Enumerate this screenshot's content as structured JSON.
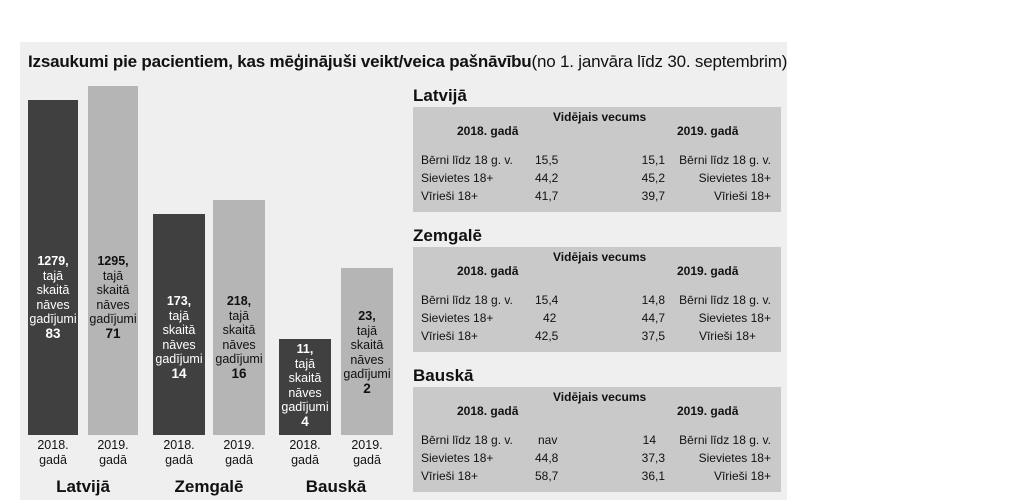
{
  "chart_data": {
    "type": "bar",
    "title": "Izsaukumi pie pacientiem, kas mēģinājuši veikt/veica pašnāvību",
    "subtitle": "(no 1. janvāra līdz 30. septembrim)",
    "categories": [
      "Latvijā",
      "Zemgalē",
      "Bauskā"
    ],
    "series": [
      {
        "name": "2018. gadā",
        "values": [
          1279,
          173,
          11
        ],
        "deaths": [
          83,
          14,
          4
        ]
      },
      {
        "name": "2019. gadā",
        "values": [
          1295,
          218,
          23
        ],
        "deaths": [
          71,
          16,
          2
        ]
      }
    ],
    "year_labels": [
      "2018.\ngadā",
      "2019.\ngadā"
    ],
    "bar_text": {
      "latvija_2018": "1279,\ntajā\nskaitā\nnāves\ngadījumi\n83",
      "latvija_2019": "1295,\ntajā\nskaitā\nnāves\ngadījumi\n71",
      "zemgale_2018": "173,\ntajā\nskaitā\nnāves\ngadījumi\n14",
      "zemgale_2019": "218,\ntajā\nskaitā\nnāves\ngadījumi\n16",
      "bauska_2018": "11,\ntajā\nskaitā\nnāves\ngadījumi\n4",
      "bauska_2019": "23,\ntajā\nskaitā\nnāves\ngadījumi\n2"
    },
    "legend": "none",
    "grid": false
  },
  "tables": [
    {
      "region": "Latvijā",
      "header": "Vidējais vecums",
      "col_2018": "2018. gadā",
      "col_2019": "2019. gadā",
      "rows": [
        {
          "label": "Bērni līdz 18 g. v.",
          "v2018": "15,5",
          "v2019": "15,1",
          "label_right": "Bērni līdz 18 g. v."
        },
        {
          "label": "Sievietes 18+",
          "v2018": "44,2",
          "v2019": "45,2",
          "label_right": "Sievietes 18+"
        },
        {
          "label": "Vīrieši 18+",
          "v2018": "41,7",
          "v2019": "39,7",
          "label_right": "Vīrieši 18+"
        }
      ]
    },
    {
      "region": "Zemgalē",
      "header": "Vidējais vecums",
      "col_2018": "2018. gadā",
      "col_2019": "2019. gadā",
      "rows": [
        {
          "label": "Bērni līdz 18 g. v.",
          "v2018": "15,4",
          "v2019": "14,8",
          "label_right": "Bērni līdz 18 g. v."
        },
        {
          "label": "Sievietes 18+",
          "v2018": "42",
          "v2019": "44,7",
          "label_right": "Sievietes 18+"
        },
        {
          "label": "Vīrieši 18+",
          "v2018": "42,5",
          "v2019": "37,5",
          "label_right": "Vīrieši 18+"
        }
      ]
    },
    {
      "region": "Bauskā",
      "header": "Vidējais vecums",
      "col_2018": "2018. gadā",
      "col_2019": "2019. gadā",
      "rows": [
        {
          "label": "Bērni līdz 18 g. v.",
          "v2018": "nav",
          "v2019": "14",
          "label_right": "Bērni līdz 18 g. v."
        },
        {
          "label": "Sievietes 18+",
          "v2018": "44,8",
          "v2019": "37,3",
          "label_right": "Sievietes 18+"
        },
        {
          "label": "Vīrieši 18+",
          "v2018": "58,7",
          "v2019": "36,1",
          "label_right": "Vīrieši 18+"
        }
      ]
    }
  ]
}
